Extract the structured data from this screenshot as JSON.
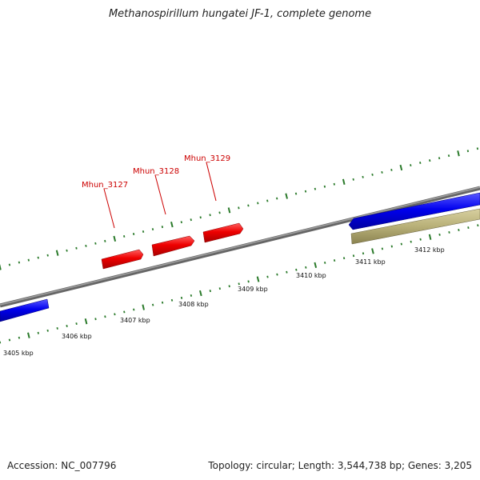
{
  "title": "Methanospirillum hungatei JF-1, complete genome",
  "footer": {
    "accession": "Accession: NC_007796",
    "summary": "Topology: circular; Length: 3,544,738 bp; Genes: 3,205"
  },
  "colors": {
    "backbone": "#7a7a7a",
    "tick_minor": "#2a7a2a",
    "forward_gene": "#0000ee",
    "reverse_gene": "#b8b078",
    "highlight_gene": "#ee0000",
    "gene_label": "#cc0000"
  },
  "scale_labels": [
    "3405 kbp",
    "3406 kbp",
    "3407 kbp",
    "3408 kbp",
    "3409 kbp",
    "3410 kbp",
    "3411 kbp",
    "3412 kbp"
  ],
  "gene_labels": [
    "Mhun_3127",
    "Mhun_3128",
    "Mhun_3129"
  ]
}
